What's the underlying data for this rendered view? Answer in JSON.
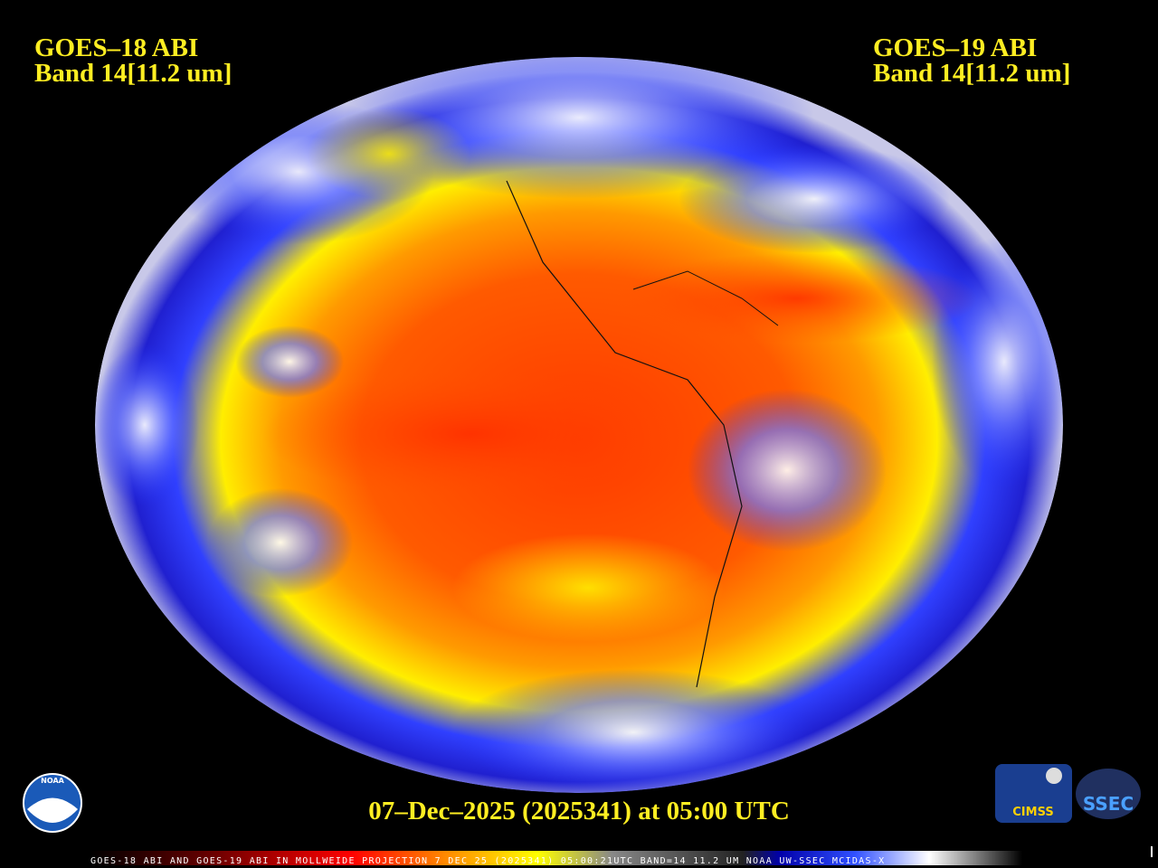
{
  "header": {
    "left": {
      "satellite": "GOES–18 ABI",
      "band": "Band 14[11.2 um]"
    },
    "right": {
      "satellite": "GOES–19 ABI",
      "band": "Band 14[11.2 um]"
    }
  },
  "timestamp": "07–Dec–2025 (2025341) at 05:00 UTC",
  "footer": "GOES-18 ABI AND GOES-19 ABI IN MOLLWEIDE PROJECTION 7 DEC 25 (2025341) 05:00:21UTC BAND=14 11.2 UM NOAA UW-SSEC MCIDAS-X",
  "logos": {
    "noaa": "NOAA",
    "cimss": "CIMSS",
    "ssec": "SSEC"
  }
}
